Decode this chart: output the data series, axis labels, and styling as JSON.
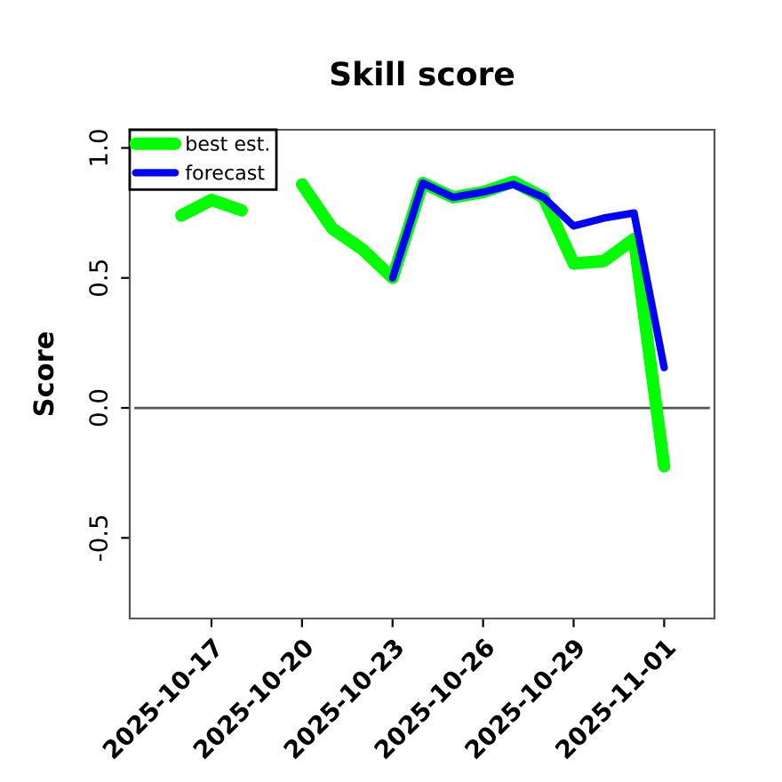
{
  "chart_data": {
    "type": "line",
    "title": "Skill score",
    "ylabel": "Score",
    "series": [
      {
        "name": "best est.",
        "color": "#00ff00",
        "x": [
          "2025-10-16",
          "2025-10-17",
          "2025-10-18",
          "2025-10-19",
          "2025-10-20",
          "2025-10-21",
          "2025-10-22",
          "2025-10-23",
          "2025-10-24",
          "2025-10-25",
          "2025-10-26",
          "2025-10-27",
          "2025-10-28",
          "2025-10-29",
          "2025-10-30",
          "2025-10-31",
          "2025-11-01"
        ],
        "values": [
          0.74,
          0.8,
          0.76,
          null,
          0.86,
          0.69,
          0.61,
          0.5,
          0.865,
          0.81,
          0.83,
          0.87,
          0.81,
          0.555,
          0.565,
          0.65,
          -0.225
        ]
      },
      {
        "name": "forecast",
        "color": "#0000ff",
        "x": [
          "2025-10-23",
          "2025-10-24",
          "2025-10-25",
          "2025-10-26",
          "2025-10-27",
          "2025-10-28",
          "2025-10-29",
          "2025-10-30",
          "2025-10-31",
          "2025-11-01"
        ],
        "values": [
          0.5,
          0.865,
          0.81,
          0.83,
          0.86,
          0.81,
          0.7,
          0.73,
          0.75,
          0.155
        ]
      }
    ],
    "xlim": [
      "2025-10-14T07:00",
      "2025-11-02T16:00"
    ],
    "xticks": [
      {
        "value": "2025-10-17",
        "label": "2025-10-17"
      },
      {
        "value": "2025-10-20",
        "label": "2025-10-20"
      },
      {
        "value": "2025-10-23",
        "label": "2025-10-23"
      },
      {
        "value": "2025-10-26",
        "label": "2025-10-26"
      },
      {
        "value": "2025-10-29",
        "label": "2025-10-29"
      },
      {
        "value": "2025-11-01",
        "label": "2025-11-01"
      }
    ],
    "ylim": [
      -0.81,
      1.07
    ],
    "yticks": [
      {
        "value": -0.5,
        "label": "-0.5"
      },
      {
        "value": 0,
        "label": "0.0"
      },
      {
        "value": 0.5,
        "label": "0.5"
      },
      {
        "value": 1,
        "label": "1.0"
      }
    ],
    "ref_lines": [
      {
        "axis": "y",
        "value": 0,
        "color": "#555555"
      }
    ],
    "legend": "top left",
    "grid": false,
    "marker": "none",
    "line_style": "solid"
  }
}
